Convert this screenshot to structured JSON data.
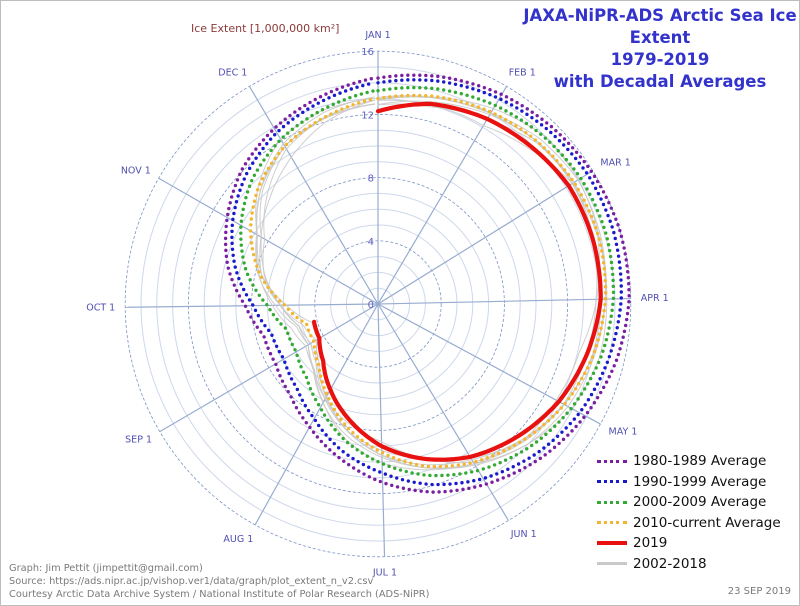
{
  "title": {
    "line1": "JAXA-NiPR-ADS Arctic Sea Ice Extent",
    "line2": "1979-2019",
    "line3": "with Decadal Averages"
  },
  "credits": {
    "line1": "Graph: Jim Pettit (jimpettit@gmail.com)",
    "line2": "Source: https://ads.nipr.ac.jp/vishop.ver1/data/graph/plot_extent_n_v2.csv",
    "line3": "Courtesy Arctic Data Archive System / National Institute of Polar Research (ADS-NiPR)"
  },
  "date_stamp": "23 SEP 2019",
  "chart_data": {
    "type": "line",
    "subtype": "polar",
    "title": "JAXA-NiPR-ADS Arctic Sea Ice Extent 1979-2019 with Decadal Averages",
    "radial_label": "Ice Extent [1,000,000 km²]",
    "radial_range": [
      0,
      16
    ],
    "radial_ticks": [
      0,
      4,
      8,
      12,
      16
    ],
    "radial_minor_step": 1,
    "angular_direction": "clockwise",
    "angular_start": "JAN 1 at top",
    "angular_ticks": [
      {
        "label": "JAN 1",
        "day": 1
      },
      {
        "label": "FEB 1",
        "day": 32
      },
      {
        "label": "MAR 1",
        "day": 60
      },
      {
        "label": "APR 1",
        "day": 91
      },
      {
        "label": "MAY 1",
        "day": 121
      },
      {
        "label": "JUN 1",
        "day": 152
      },
      {
        "label": "JUL 1",
        "day": 182
      },
      {
        "label": "AUG 1",
        "day": 213
      },
      {
        "label": "SEP 1",
        "day": 244
      },
      {
        "label": "OCT 1",
        "day": 274
      },
      {
        "label": "NOV 1",
        "day": 305
      },
      {
        "label": "DEC 1",
        "day": 335
      }
    ],
    "grid": true,
    "legend_position": "bottom-right",
    "x_days": [
      1,
      16,
      32,
      46,
      60,
      75,
      91,
      106,
      121,
      136,
      152,
      167,
      182,
      197,
      213,
      228,
      244,
      259,
      274,
      289,
      305,
      320,
      335,
      350,
      365
    ],
    "series": [
      {
        "name": "1980-1989 Average",
        "color": "#7b1fa2",
        "style": "dotted",
        "values": [
          14.3,
          14.9,
          15.4,
          15.7,
          15.9,
          16.0,
          15.9,
          15.5,
          14.9,
          14.2,
          13.3,
          12.4,
          11.3,
          10.1,
          8.9,
          8.0,
          7.5,
          7.5,
          8.4,
          9.8,
          11.0,
          12.1,
          12.9,
          13.6,
          14.3
        ]
      },
      {
        "name": "1990-1999 Average",
        "color": "#1a1acc",
        "style": "dotted",
        "values": [
          14.0,
          14.6,
          15.1,
          15.4,
          15.6,
          15.6,
          15.4,
          15.0,
          14.5,
          13.8,
          12.9,
          11.9,
          10.7,
          9.6,
          8.3,
          7.4,
          6.9,
          7.0,
          7.9,
          9.3,
          10.6,
          11.7,
          12.6,
          13.3,
          14.0
        ]
      },
      {
        "name": "2000-2009 Average",
        "color": "#33aa33",
        "style": "dotted",
        "values": [
          13.5,
          14.1,
          14.6,
          14.9,
          15.1,
          15.1,
          14.9,
          14.5,
          13.9,
          13.2,
          12.3,
          11.3,
          10.1,
          8.9,
          7.5,
          6.5,
          6.0,
          6.0,
          7.0,
          8.6,
          10.0,
          11.2,
          12.1,
          12.8,
          13.5
        ]
      },
      {
        "name": "2010-current Average",
        "color": "#f2b630",
        "style": "dotted",
        "values": [
          13.0,
          13.6,
          14.1,
          14.4,
          14.6,
          14.6,
          14.4,
          14.0,
          13.4,
          12.6,
          11.7,
          10.7,
          9.4,
          8.1,
          6.6,
          5.4,
          4.7,
          4.7,
          5.9,
          7.7,
          9.3,
          10.6,
          11.6,
          12.3,
          13.0
        ]
      },
      {
        "name": "2019",
        "color": "#e8110f",
        "style": "solid",
        "values": [
          12.2,
          13.1,
          13.6,
          13.9,
          14.2,
          14.2,
          14.1,
          13.6,
          13.0,
          12.2,
          11.3,
          10.2,
          9.0,
          7.6,
          6.2,
          5.0,
          4.3,
          4.2,
          null,
          null,
          null,
          null,
          null,
          null,
          null
        ]
      },
      {
        "name": "2002-2018",
        "color": "#c9c9c9",
        "style": "solid",
        "values": [
          12.9,
          13.5,
          14.0,
          14.4,
          14.6,
          14.6,
          14.4,
          14.0,
          13.4,
          12.7,
          11.8,
          10.8,
          9.6,
          8.3,
          6.9,
          5.8,
          5.1,
          5.2,
          6.2,
          7.6,
          8.8,
          10.4,
          11.6,
          12.3,
          12.9
        ]
      }
    ],
    "legend": [
      {
        "label": "1980-1989 Average",
        "color": "#7b1fa2",
        "style": "dotted"
      },
      {
        "label": "1990-1999 Average",
        "color": "#1a1acc",
        "style": "dotted"
      },
      {
        "label": "2000-2009 Average",
        "color": "#33aa33",
        "style": "dotted"
      },
      {
        "label": "2010-current Average",
        "color": "#f2b630",
        "style": "dotted"
      },
      {
        "label": "2019",
        "color": "#e8110f",
        "style": "solid"
      },
      {
        "label": "2002-2018",
        "color": "#c9c9c9",
        "style": "solid"
      }
    ]
  }
}
